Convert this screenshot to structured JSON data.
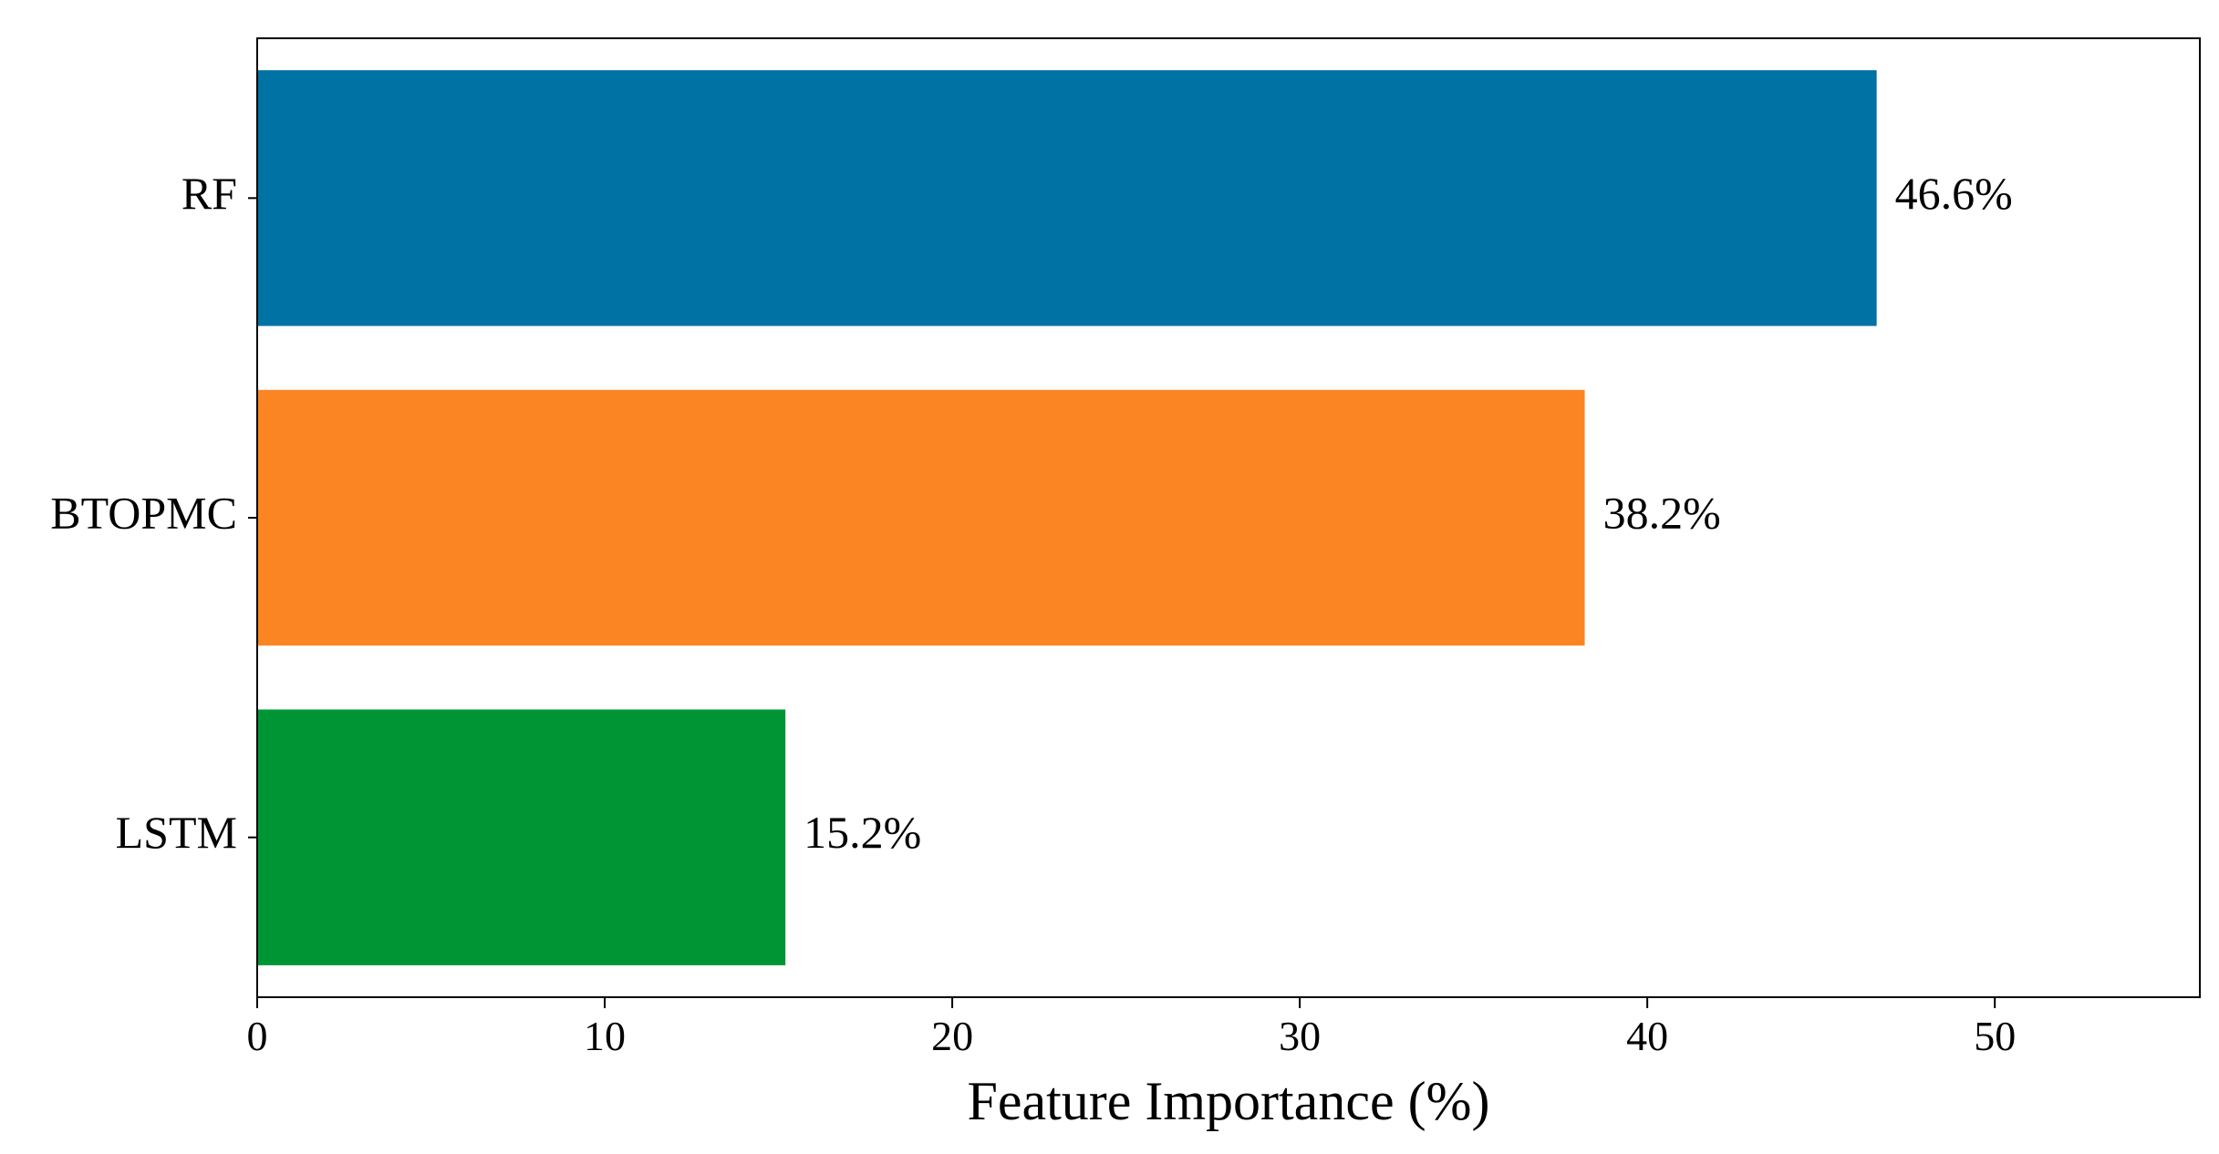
{
  "chart_data": {
    "type": "bar",
    "orientation": "horizontal",
    "categories": [
      "RF",
      "BTOPMC",
      "LSTM"
    ],
    "values": [
      46.6,
      38.2,
      15.2
    ],
    "value_labels": [
      "46.6%",
      "38.2%",
      "15.2%"
    ],
    "colors": [
      "#0072a4",
      "#fb8522",
      "#009534"
    ],
    "xlabel": "Feature Importance (%)",
    "ylabel": "",
    "title": "",
    "xlim": [
      0,
      55.9
    ],
    "xticks": [
      0,
      10,
      20,
      30,
      40,
      50
    ],
    "xtick_labels": [
      "0",
      "10",
      "20",
      "30",
      "40",
      "50"
    ],
    "grid": false,
    "legend": "none"
  }
}
